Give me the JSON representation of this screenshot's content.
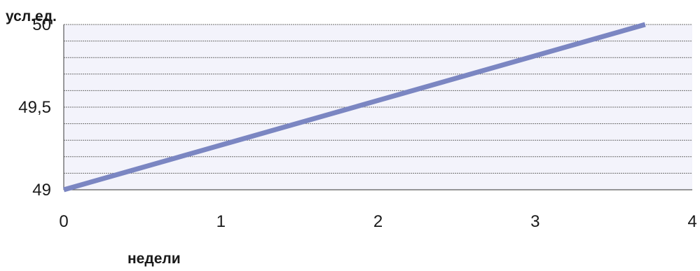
{
  "chart_data": {
    "type": "line",
    "ylabel": "усл.ед.",
    "xlabel": "недели",
    "xlim": [
      0,
      4
    ],
    "ylim": [
      49,
      50
    ],
    "x_ticks": [
      "0",
      "1",
      "2",
      "3",
      "4"
    ],
    "y_ticks": [
      "49",
      "49,5",
      "50"
    ],
    "grid": true,
    "series": [
      {
        "x": [
          0,
          3.7
        ],
        "y": [
          49,
          50
        ],
        "color": "#7b86c2"
      }
    ]
  }
}
